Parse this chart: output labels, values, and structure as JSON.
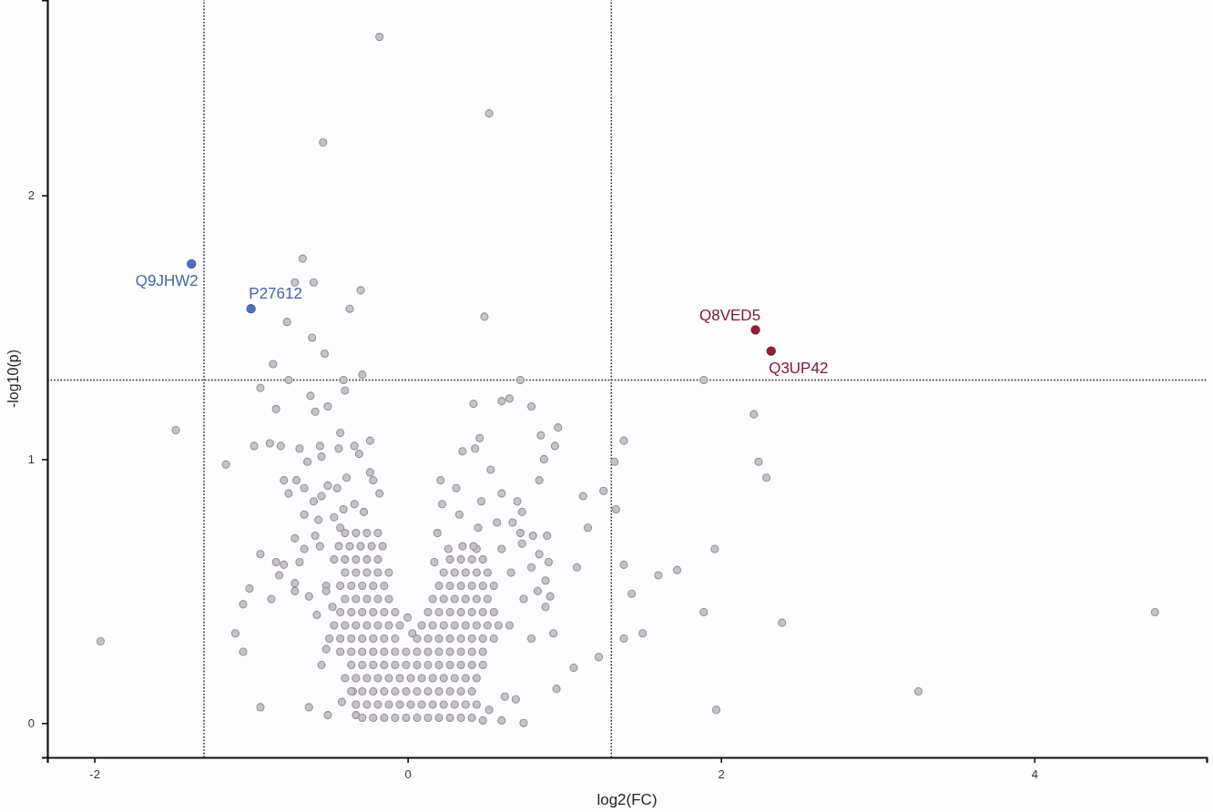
{
  "chart_data": {
    "type": "scatter",
    "xlabel": "log2(FC)",
    "ylabel": "-log10(p)",
    "xlim": [
      -2.3,
      5.1
    ],
    "ylim": [
      -0.13,
      2.74
    ],
    "xticks": [
      -2,
      0,
      2,
      4
    ],
    "yticks": [
      0,
      1,
      2
    ],
    "marker": "circle",
    "ref_lines": [
      {
        "axis": "x",
        "value": -1.3,
        "color": "#222222",
        "line_style": "dotted"
      },
      {
        "axis": "x",
        "value": 1.3,
        "color": "#222222",
        "line_style": "dotted"
      },
      {
        "axis": "y",
        "value": 1.3,
        "color": "#222222",
        "line_style": "dotted"
      }
    ],
    "series": [
      {
        "color": "#c4c4c4",
        "x": [
          -0.18,
          0.52,
          -0.54,
          0.49,
          -0.67,
          -0.72,
          -0.6,
          -0.3,
          -0.37,
          -0.77,
          -0.61,
          -0.53,
          -0.86,
          -0.29,
          -0.41,
          -0.76,
          -0.94,
          0.72,
          1.89,
          -0.84,
          -1.48,
          -0.43,
          -0.98,
          -0.88,
          -0.81,
          -0.69,
          -0.56,
          -0.44,
          -0.55,
          -0.64,
          -1.16,
          -0.24,
          -0.34,
          -0.51,
          -0.62,
          -0.59,
          -0.4,
          -0.31,
          -0.24,
          -0.22,
          -0.18,
          -0.79,
          -0.71,
          -0.76,
          -0.66,
          -0.6,
          -0.55,
          -0.51,
          -0.45,
          -0.39,
          -0.34,
          -0.28,
          -0.66,
          -0.57,
          -0.47,
          -0.41,
          -0.43,
          -0.72,
          -0.66,
          -0.59,
          -0.56,
          -0.94,
          -0.84,
          -0.79,
          -0.69,
          -0.82,
          -1.01,
          -1.05,
          -0.87,
          -0.72,
          -0.72,
          -0.63,
          -0.52,
          -0.52,
          -0.48,
          -0.58,
          -1.1,
          -1.05,
          -0.52,
          -0.55,
          -0.35,
          -0.42,
          -0.94,
          -0.63,
          -0.51,
          -0.33,
          0,
          0.03,
          -1.96,
          0.42,
          0.6,
          0.65,
          0.79,
          0.46,
          0.85,
          0.96,
          0.94,
          0.87,
          0.35,
          0.43,
          0.53,
          0.21,
          0.84,
          0.31,
          0.6,
          0.47,
          0.7,
          0.73,
          1.12,
          1.25,
          1.32,
          1.38,
          1.33,
          0.22,
          0.33,
          0.45,
          0.57,
          0.67,
          0.19,
          0.72,
          0.8,
          0.89,
          1.15,
          0.26,
          0.44,
          0.6,
          0.73,
          0.84,
          0.9,
          0.17,
          1.08,
          1.38,
          0.66,
          0.79,
          0.88,
          0.83,
          0.91,
          1.6,
          1.72,
          1.96,
          1.43,
          1.89,
          2.39,
          1.38,
          1.5,
          0.74,
          0.88,
          0.93,
          0.79,
          1.22,
          1.06,
          0.95,
          0.69,
          0.62,
          0.52,
          0.48,
          0.6,
          0.74,
          0.41,
          1.97,
          2.21,
          2.24,
          2.29,
          4.77,
          3.26,
          -0.29,
          -0.22,
          -0.15,
          -0.08,
          -0.01,
          0.06,
          0.13,
          0.2,
          0.27,
          0.34,
          -0.33,
          -0.26,
          -0.19,
          -0.12,
          -0.05,
          0.02,
          0.09,
          0.16,
          0.23,
          0.3,
          0.37,
          0.44,
          -0.36,
          -0.29,
          -0.22,
          -0.15,
          -0.08,
          -0.01,
          0.06,
          0.13,
          0.2,
          0.27,
          0.34,
          0.41,
          -0.4,
          -0.33,
          -0.26,
          -0.19,
          -0.12,
          -0.05,
          0.02,
          0.09,
          0.16,
          0.23,
          0.3,
          0.37,
          0.44,
          -0.36,
          -0.29,
          -0.22,
          -0.15,
          -0.08,
          -0.01,
          0.06,
          0.13,
          0.2,
          0.27,
          0.34,
          0.41,
          0.48,
          -0.43,
          -0.36,
          -0.29,
          -0.22,
          -0.15,
          -0.08,
          -0.01,
          0.06,
          0.13,
          0.2,
          0.27,
          0.34,
          0.41,
          0.48,
          -0.5,
          -0.43,
          -0.36,
          -0.29,
          -0.22,
          -0.15,
          -0.08,
          0.06,
          0.13,
          0.2,
          0.27,
          0.34,
          0.41,
          0.48,
          0.55,
          -0.47,
          -0.4,
          -0.33,
          -0.26,
          -0.19,
          -0.12,
          -0.05,
          0.09,
          0.16,
          0.23,
          0.3,
          0.37,
          0.44,
          0.51,
          0.58,
          0.65,
          -0.43,
          -0.36,
          -0.29,
          -0.22,
          -0.15,
          -0.08,
          0.13,
          0.2,
          0.27,
          0.34,
          0.41,
          0.48,
          0.55,
          -0.4,
          -0.33,
          -0.26,
          -0.19,
          -0.12,
          0.16,
          0.23,
          0.3,
          0.37,
          0.44,
          0.51,
          -0.43,
          -0.36,
          -0.29,
          -0.22,
          -0.15,
          0.2,
          0.27,
          0.34,
          0.41,
          0.48,
          0.55,
          -0.4,
          -0.33,
          -0.26,
          -0.19,
          -0.12,
          0.23,
          0.3,
          0.37,
          0.44,
          0.51,
          -0.47,
          -0.4,
          -0.33,
          -0.26,
          -0.19,
          0.27,
          0.34,
          0.41,
          0.48,
          -0.44,
          -0.37,
          -0.3,
          -0.23,
          -0.16,
          0.35,
          0.42,
          -0.4,
          -0.33,
          -0.26,
          -0.19
        ],
        "values": [
          2.6,
          2.31,
          2.2,
          1.54,
          1.76,
          1.67,
          1.67,
          1.64,
          1.57,
          1.52,
          1.46,
          1.4,
          1.36,
          1.32,
          1.3,
          1.3,
          1.27,
          1.3,
          1.3,
          1.19,
          1.11,
          1.1,
          1.05,
          1.06,
          1.05,
          1.04,
          1.05,
          1.04,
          1.01,
          0.99,
          0.98,
          1.07,
          1.05,
          1.2,
          1.24,
          1.18,
          1.26,
          1.02,
          0.95,
          0.92,
          0.87,
          0.92,
          0.92,
          0.87,
          0.89,
          0.84,
          0.86,
          0.9,
          0.89,
          0.93,
          0.83,
          0.8,
          0.79,
          0.77,
          0.78,
          0.81,
          0.74,
          0.7,
          0.66,
          0.71,
          0.67,
          0.64,
          0.61,
          0.6,
          0.61,
          0.56,
          0.51,
          0.45,
          0.47,
          0.53,
          0.5,
          0.48,
          0.52,
          0.5,
          0.44,
          0.41,
          0.34,
          0.27,
          0.28,
          0.22,
          0.12,
          0.08,
          0.06,
          0.06,
          0.03,
          0.03,
          0.4,
          0.34,
          0.31,
          1.21,
          1.22,
          1.23,
          1.2,
          1.08,
          1.09,
          1.12,
          1.05,
          1,
          1.03,
          1.04,
          0.96,
          0.92,
          0.92,
          0.89,
          0.87,
          0.84,
          0.84,
          0.8,
          0.86,
          0.88,
          0.99,
          1.07,
          0.81,
          0.83,
          0.79,
          0.74,
          0.76,
          0.76,
          0.72,
          0.72,
          0.71,
          0.71,
          0.74,
          0.66,
          0.66,
          0.66,
          0.68,
          0.64,
          0.61,
          0.61,
          0.59,
          0.6,
          0.57,
          0.59,
          0.54,
          0.5,
          0.48,
          0.56,
          0.58,
          0.66,
          0.49,
          0.42,
          0.38,
          0.32,
          0.34,
          0.47,
          0.44,
          0.34,
          0.32,
          0.25,
          0.21,
          0.13,
          0.09,
          0.1,
          0.05,
          0.01,
          0.01,
          0,
          0.02,
          0.05,
          1.17,
          0.99,
          0.93,
          0.42,
          0.12,
          0.02,
          0.02,
          0.02,
          0.02,
          0.02,
          0.02,
          0.02,
          0.02,
          0.02,
          0.02,
          0.07,
          0.07,
          0.07,
          0.07,
          0.07,
          0.07,
          0.07,
          0.07,
          0.07,
          0.07,
          0.07,
          0.07,
          0.12,
          0.12,
          0.12,
          0.12,
          0.12,
          0.12,
          0.12,
          0.12,
          0.12,
          0.12,
          0.12,
          0.12,
          0.17,
          0.17,
          0.17,
          0.17,
          0.17,
          0.17,
          0.17,
          0.17,
          0.17,
          0.17,
          0.17,
          0.17,
          0.17,
          0.22,
          0.22,
          0.22,
          0.22,
          0.22,
          0.22,
          0.22,
          0.22,
          0.22,
          0.22,
          0.22,
          0.22,
          0.22,
          0.27,
          0.27,
          0.27,
          0.27,
          0.27,
          0.27,
          0.27,
          0.27,
          0.27,
          0.27,
          0.27,
          0.27,
          0.27,
          0.27,
          0.32,
          0.32,
          0.32,
          0.32,
          0.32,
          0.32,
          0.32,
          0.32,
          0.32,
          0.32,
          0.32,
          0.32,
          0.32,
          0.32,
          0.32,
          0.37,
          0.37,
          0.37,
          0.37,
          0.37,
          0.37,
          0.37,
          0.37,
          0.37,
          0.37,
          0.37,
          0.37,
          0.37,
          0.37,
          0.37,
          0.37,
          0.42,
          0.42,
          0.42,
          0.42,
          0.42,
          0.42,
          0.42,
          0.42,
          0.42,
          0.42,
          0.42,
          0.42,
          0.42,
          0.47,
          0.47,
          0.47,
          0.47,
          0.47,
          0.47,
          0.47,
          0.47,
          0.47,
          0.47,
          0.47,
          0.52,
          0.52,
          0.52,
          0.52,
          0.52,
          0.52,
          0.52,
          0.52,
          0.52,
          0.52,
          0.52,
          0.57,
          0.57,
          0.57,
          0.57,
          0.57,
          0.57,
          0.57,
          0.57,
          0.57,
          0.57,
          0.62,
          0.62,
          0.62,
          0.62,
          0.62,
          0.62,
          0.62,
          0.62,
          0.62,
          0.67,
          0.67,
          0.67,
          0.67,
          0.67,
          0.67,
          0.67,
          0.72,
          0.72,
          0.72,
          0.72
        ]
      },
      {
        "color": "#4f6fbf",
        "x": [
          -1.38,
          -1.0
        ],
        "values": [
          1.74,
          1.57
        ]
      },
      {
        "color": "#9a1a3a",
        "x": [
          2.22,
          2.32
        ],
        "values": [
          1.49,
          1.41
        ]
      }
    ],
    "annotations": [
      {
        "text": "Q9JHW2",
        "x": -1.38,
        "y": 1.74
      },
      {
        "text": "P27612",
        "x": -1.0,
        "y": 1.57
      },
      {
        "text": "Q8VED5",
        "x": 2.22,
        "y": 1.49
      },
      {
        "text": "Q3UP42",
        "x": 2.32,
        "y": 1.41
      }
    ]
  }
}
